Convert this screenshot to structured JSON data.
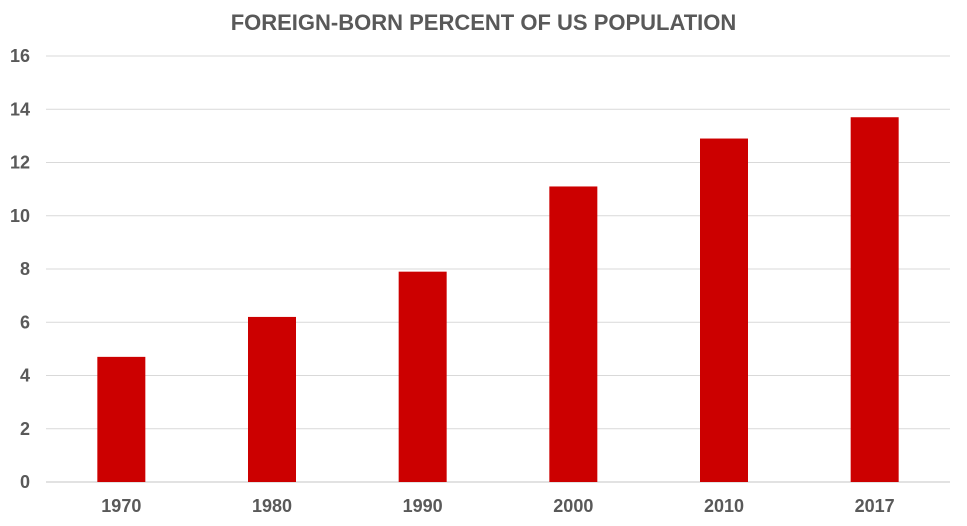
{
  "chart_data": {
    "type": "bar",
    "title": "FOREIGN-BORN PERCENT OF US POPULATION",
    "xlabel": "",
    "ylabel": "",
    "categories": [
      "1970",
      "1980",
      "1990",
      "2000",
      "2010",
      "2017"
    ],
    "values": [
      4.7,
      6.2,
      7.9,
      11.1,
      12.9,
      13.7
    ],
    "ylim": [
      0,
      16
    ],
    "yticks": [
      "0",
      "2",
      "4",
      "6",
      "8",
      "10",
      "12",
      "14",
      "16"
    ],
    "grid": true,
    "legend": "none",
    "bar_color": "#cc0000",
    "grid_color": "#d9d9d9",
    "text_color": "#595959"
  }
}
